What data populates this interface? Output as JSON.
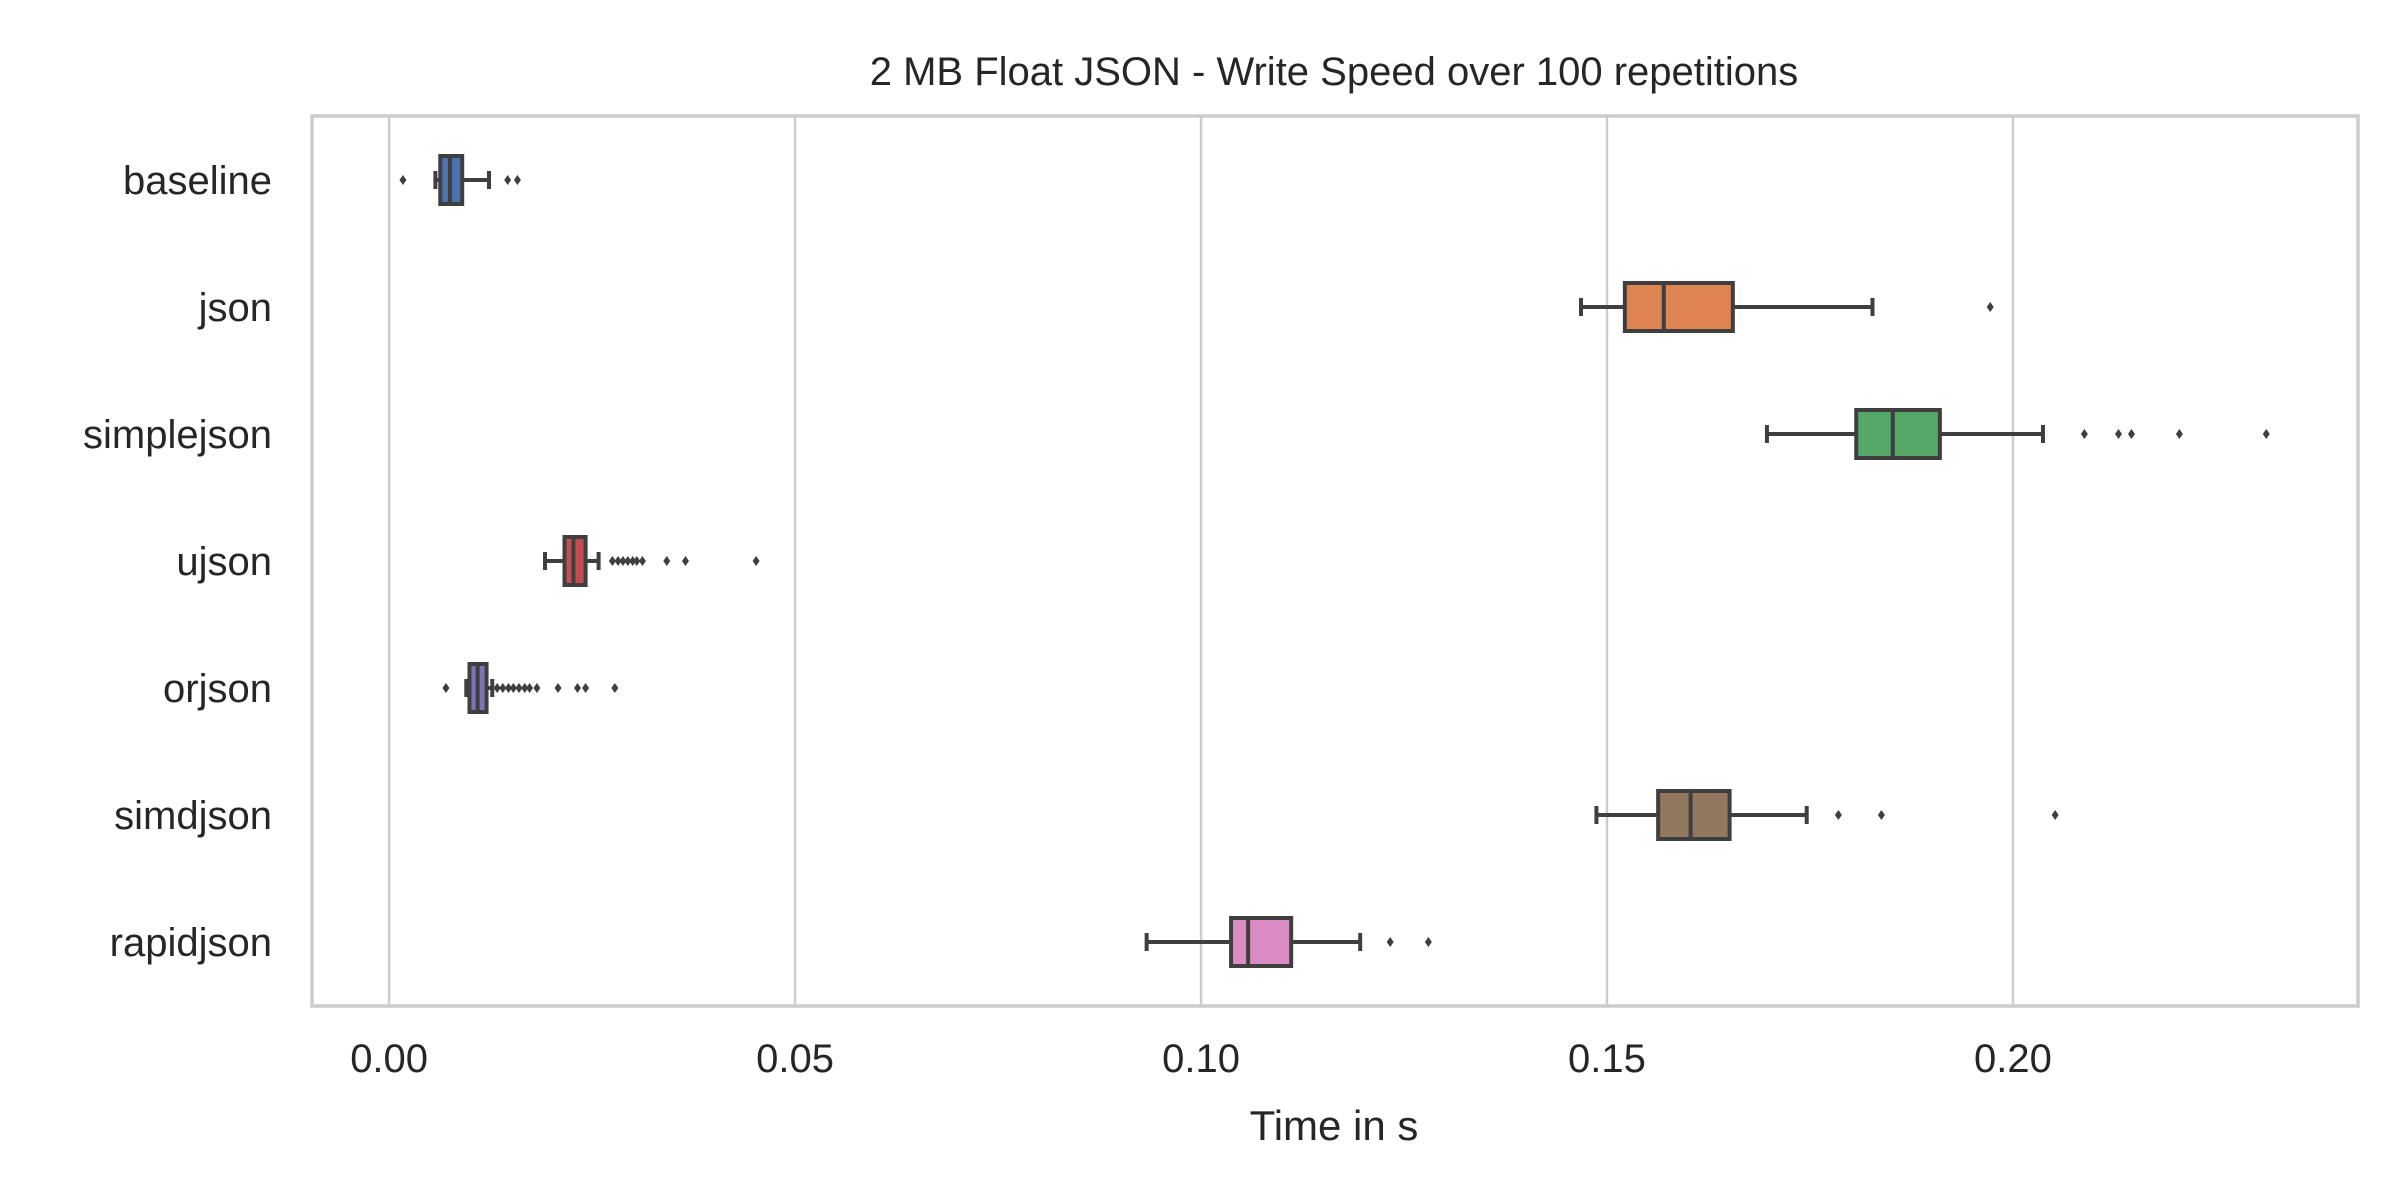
{
  "chart_data": {
    "type": "boxplot",
    "orientation": "horizontal",
    "title": "2 MB Float JSON - Write Speed over 100 repetitions",
    "xlabel": "Time in s",
    "ylabel": "",
    "xlim": [
      -0.0095,
      0.2425
    ],
    "xticks": [
      0.0,
      0.05,
      0.1,
      0.15,
      0.2
    ],
    "xtick_labels": [
      "0.00",
      "0.05",
      "0.10",
      "0.15",
      "0.20"
    ],
    "grid": "vertical",
    "categories": [
      "baseline",
      "json",
      "simplejson",
      "ujson",
      "orjson",
      "simdjson",
      "rapidjson"
    ],
    "series": [
      {
        "name": "baseline",
        "color": "#4c72b0",
        "whisker_low": 0.0057,
        "q1": 0.0063,
        "median": 0.0075,
        "q3": 0.009,
        "whisker_high": 0.0123,
        "outliers": [
          0.0017,
          0.0146,
          0.0158
        ]
      },
      {
        "name": "json",
        "color": "#dd8452",
        "whisker_low": 0.1468,
        "q1": 0.1522,
        "median": 0.157,
        "q3": 0.1655,
        "whisker_high": 0.1827,
        "outliers": [
          0.1972
        ]
      },
      {
        "name": "simplejson",
        "color": "#55a868",
        "whisker_low": 0.1697,
        "q1": 0.1807,
        "median": 0.1852,
        "q3": 0.191,
        "whisker_high": 0.2037,
        "outliers": [
          0.2088,
          0.213,
          0.2146,
          0.2205,
          0.2312
        ]
      },
      {
        "name": "ujson",
        "color": "#c44e52",
        "whisker_low": 0.0192,
        "q1": 0.0216,
        "median": 0.0227,
        "q3": 0.0242,
        "whisker_high": 0.0258,
        "outliers": [
          0.0275,
          0.0282,
          0.0288,
          0.0294,
          0.03,
          0.0305,
          0.0312,
          0.0342,
          0.0365,
          0.0452
        ]
      },
      {
        "name": "orjson",
        "color": "#8172b3",
        "whisker_low": 0.0095,
        "q1": 0.0099,
        "median": 0.0109,
        "q3": 0.012,
        "whisker_high": 0.0127,
        "outliers": [
          0.007,
          0.0133,
          0.014,
          0.0147,
          0.0153,
          0.016,
          0.0167,
          0.0173,
          0.0182,
          0.0208,
          0.0232,
          0.0242,
          0.0278
        ]
      },
      {
        "name": "simdjson",
        "color": "#937860",
        "whisker_low": 0.1487,
        "q1": 0.1563,
        "median": 0.1603,
        "q3": 0.1651,
        "whisker_high": 0.1746,
        "outliers": [
          0.1785,
          0.1838,
          0.2052
        ]
      },
      {
        "name": "rapidjson",
        "color": "#da8bc3",
        "whisker_low": 0.0933,
        "q1": 0.1037,
        "median": 0.1058,
        "q3": 0.1111,
        "whisker_high": 0.1196,
        "outliers": [
          0.1233,
          0.128
        ]
      }
    ]
  }
}
